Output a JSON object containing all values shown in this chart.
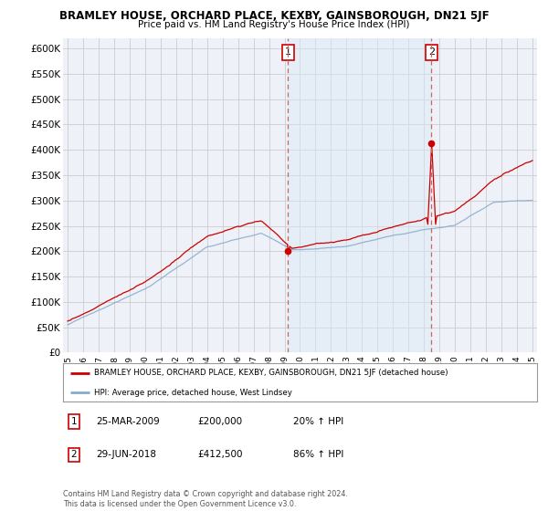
{
  "title": "BRAMLEY HOUSE, ORCHARD PLACE, KEXBY, GAINSBOROUGH, DN21 5JF",
  "subtitle": "Price paid vs. HM Land Registry's House Price Index (HPI)",
  "ylabel_ticks": [
    "£0",
    "£50K",
    "£100K",
    "£150K",
    "£200K",
    "£250K",
    "£300K",
    "£350K",
    "£400K",
    "£450K",
    "£500K",
    "£550K",
    "£600K"
  ],
  "ytick_values": [
    0,
    50000,
    100000,
    150000,
    200000,
    250000,
    300000,
    350000,
    400000,
    450000,
    500000,
    550000,
    600000
  ],
  "ylim": [
    0,
    620000
  ],
  "sale1_date": "25-MAR-2009",
  "sale1_price": 200000,
  "sale1_hpi_pct": "20% ↑ HPI",
  "sale1_label": "1",
  "sale1_x": 2009.22,
  "sale2_date": "29-JUN-2018",
  "sale2_price": 412500,
  "sale2_hpi_pct": "86% ↑ HPI",
  "sale2_label": "2",
  "sale2_x": 2018.49,
  "red_color": "#cc0000",
  "blue_color": "#88aacc",
  "shade_color": "#dce8f5",
  "dashed_line_color": "#cc6666",
  "bg_plot": "#eef2f8",
  "bg_figure": "#ffffff",
  "grid_color": "#cccccc",
  "legend_text1": "BRAMLEY HOUSE, ORCHARD PLACE, KEXBY, GAINSBOROUGH, DN21 5JF (detached house)",
  "legend_text2": "HPI: Average price, detached house, West Lindsey",
  "footnote": "Contains HM Land Registry data © Crown copyright and database right 2024.\nThis data is licensed under the Open Government Licence v3.0.",
  "xstart": 1995,
  "xend": 2025
}
